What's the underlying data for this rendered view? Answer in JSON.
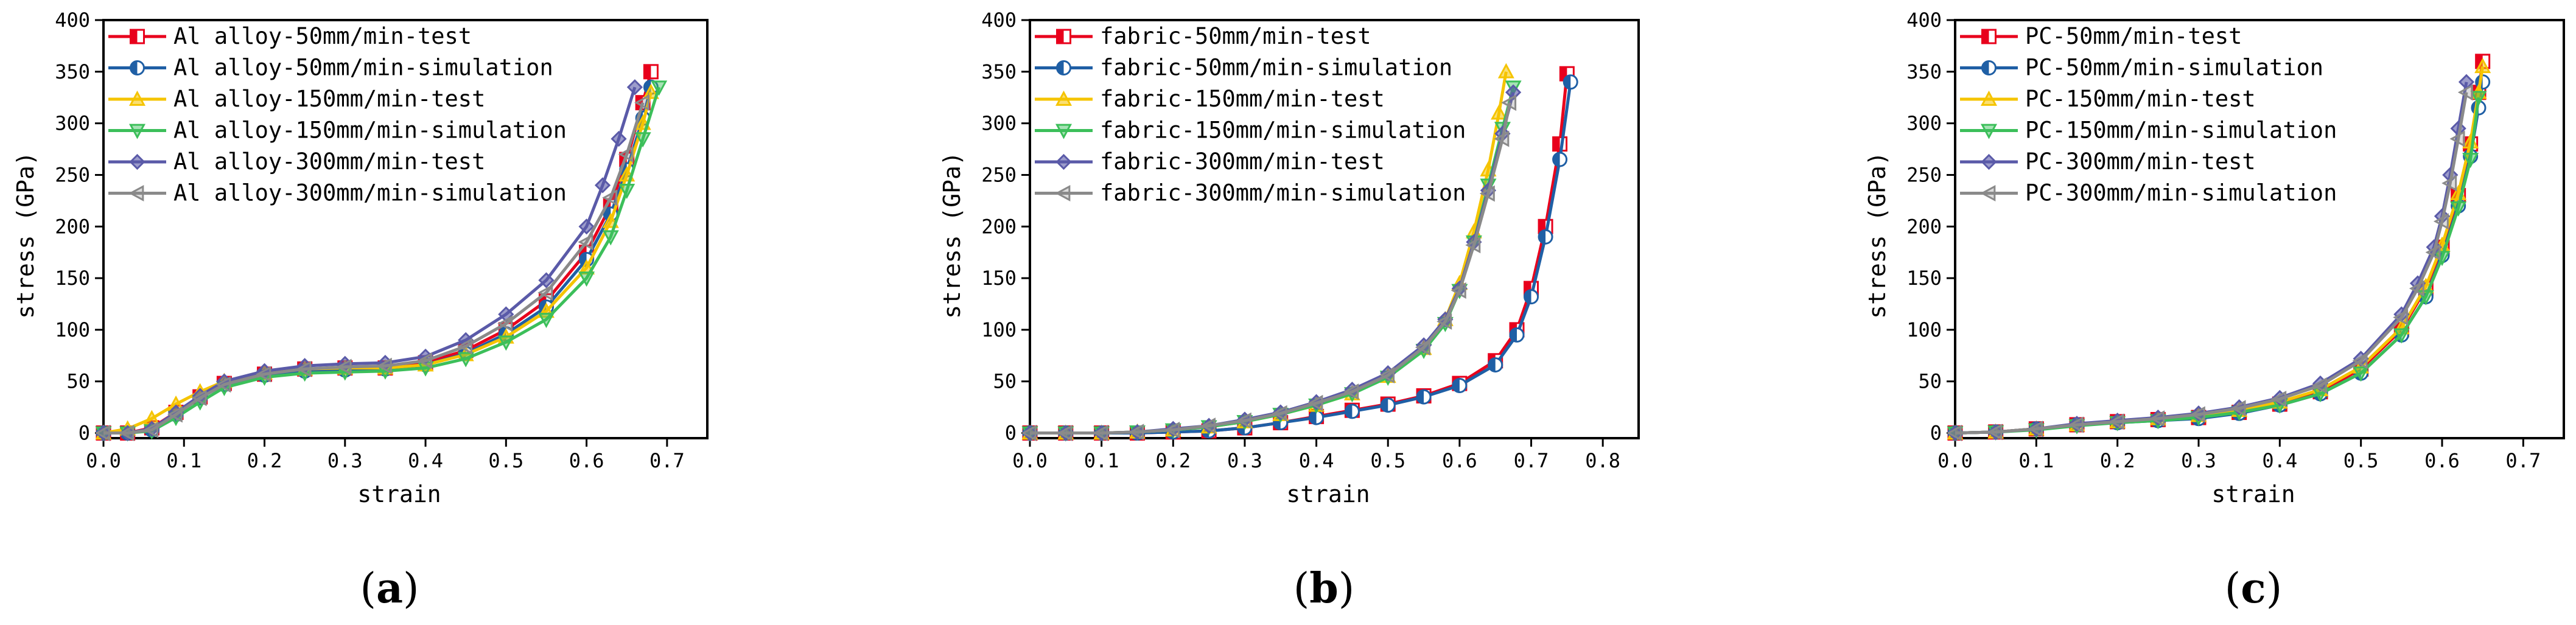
{
  "chart_data": [
    {
      "type": "line",
      "panel_label": "(a)",
      "panel_letter": "a",
      "xlabel": "strain",
      "ylabel": "stress (GPa)",
      "xlim": [
        0,
        0.75
      ],
      "ylim": [
        -5,
        400
      ],
      "x_ticks": [
        "0.0",
        "0.1",
        "0.2",
        "0.3",
        "0.4",
        "0.5",
        "0.6",
        "0.7"
      ],
      "x_tick_values": [
        0,
        0.1,
        0.2,
        0.3,
        0.4,
        0.5,
        0.6,
        0.7
      ],
      "y_ticks": [
        "0",
        "50",
        "100",
        "150",
        "200",
        "250",
        "300",
        "350",
        "400"
      ],
      "y_tick_values": [
        0,
        50,
        100,
        150,
        200,
        250,
        300,
        350,
        400
      ],
      "legend_position": "top-left",
      "series": [
        {
          "name": "Al alloy-50mm/min-test",
          "color": "#e8001c",
          "marker": "square",
          "x": [
            0,
            0.03,
            0.06,
            0.09,
            0.12,
            0.15,
            0.2,
            0.25,
            0.3,
            0.35,
            0.4,
            0.45,
            0.5,
            0.55,
            0.6,
            0.63,
            0.65,
            0.67,
            0.68
          ],
          "y": [
            0,
            0,
            5,
            20,
            35,
            48,
            57,
            62,
            63,
            63,
            68,
            80,
            100,
            128,
            175,
            220,
            265,
            320,
            350
          ]
        },
        {
          "name": "Al alloy-50mm/min-simulation",
          "color": "#1f5fa5",
          "marker": "half-circle",
          "x": [
            0,
            0.03,
            0.06,
            0.09,
            0.12,
            0.15,
            0.2,
            0.25,
            0.3,
            0.35,
            0.4,
            0.45,
            0.5,
            0.55,
            0.6,
            0.63,
            0.65,
            0.67,
            0.68
          ],
          "y": [
            0,
            0,
            3,
            18,
            34,
            47,
            56,
            60,
            61,
            62,
            66,
            77,
            96,
            122,
            168,
            212,
            255,
            305,
            335
          ]
        },
        {
          "name": "Al alloy-150mm/min-test",
          "color": "#f5c400",
          "marker": "triangle",
          "x": [
            0,
            0.03,
            0.06,
            0.09,
            0.12,
            0.15,
            0.2,
            0.25,
            0.3,
            0.35,
            0.4,
            0.45,
            0.5,
            0.55,
            0.6,
            0.63,
            0.65,
            0.67,
            0.68
          ],
          "y": [
            0,
            4,
            14,
            28,
            40,
            50,
            58,
            62,
            63,
            63,
            66,
            76,
            93,
            118,
            160,
            205,
            250,
            300,
            330
          ]
        },
        {
          "name": "Al alloy-150mm/min-simulation",
          "color": "#3cbf5a",
          "marker": "triangle-down",
          "x": [
            0,
            0.03,
            0.06,
            0.09,
            0.12,
            0.15,
            0.2,
            0.25,
            0.3,
            0.35,
            0.4,
            0.45,
            0.5,
            0.55,
            0.6,
            0.63,
            0.65,
            0.67,
            0.69
          ],
          "y": [
            0,
            0,
            2,
            15,
            30,
            44,
            54,
            58,
            59,
            60,
            63,
            72,
            88,
            110,
            150,
            190,
            235,
            285,
            335
          ]
        },
        {
          "name": "Al alloy-300mm/min-test",
          "color": "#5a5aa8",
          "marker": "diamond",
          "x": [
            0,
            0.03,
            0.06,
            0.09,
            0.12,
            0.15,
            0.2,
            0.25,
            0.3,
            0.35,
            0.4,
            0.45,
            0.5,
            0.55,
            0.6,
            0.62,
            0.64,
            0.66
          ],
          "y": [
            0,
            0,
            4,
            20,
            36,
            50,
            60,
            65,
            67,
            68,
            74,
            90,
            115,
            148,
            200,
            240,
            285,
            335
          ]
        },
        {
          "name": "Al alloy-300mm/min-simulation",
          "color": "#8a8a8a",
          "marker": "triangle-left",
          "x": [
            0,
            0.03,
            0.06,
            0.09,
            0.12,
            0.15,
            0.2,
            0.25,
            0.3,
            0.35,
            0.4,
            0.45,
            0.5,
            0.55,
            0.6,
            0.63,
            0.65,
            0.67
          ],
          "y": [
            0,
            0,
            3,
            18,
            34,
            47,
            57,
            62,
            64,
            65,
            70,
            84,
            106,
            136,
            185,
            228,
            270,
            320
          ]
        }
      ]
    },
    {
      "type": "line",
      "panel_label": "(b)",
      "panel_letter": "b",
      "xlabel": "strain",
      "ylabel": "stress (GPa)",
      "xlim": [
        0,
        0.85
      ],
      "ylim": [
        -5,
        400
      ],
      "x_ticks": [
        "0.0",
        "0.1",
        "0.2",
        "0.3",
        "0.4",
        "0.5",
        "0.6",
        "0.7",
        "0.8"
      ],
      "x_tick_values": [
        0,
        0.1,
        0.2,
        0.3,
        0.4,
        0.5,
        0.6,
        0.7,
        0.8
      ],
      "y_ticks": [
        "0",
        "50",
        "100",
        "150",
        "200",
        "250",
        "300",
        "350",
        "400"
      ],
      "y_tick_values": [
        0,
        50,
        100,
        150,
        200,
        250,
        300,
        350,
        400
      ],
      "legend_position": "top-left",
      "series": [
        {
          "name": "fabric-50mm/min-test",
          "color": "#e8001c",
          "marker": "square",
          "x": [
            0,
            0.05,
            0.1,
            0.15,
            0.2,
            0.25,
            0.3,
            0.35,
            0.4,
            0.45,
            0.5,
            0.55,
            0.6,
            0.65,
            0.68,
            0.7,
            0.72,
            0.74,
            0.75
          ],
          "y": [
            0,
            0,
            0,
            0,
            1,
            2,
            5,
            10,
            16,
            22,
            28,
            36,
            48,
            70,
            100,
            140,
            200,
            280,
            348
          ]
        },
        {
          "name": "fabric-50mm/min-simulation",
          "color": "#1f5fa5",
          "marker": "half-circle",
          "x": [
            0,
            0.05,
            0.1,
            0.15,
            0.2,
            0.25,
            0.3,
            0.35,
            0.4,
            0.45,
            0.5,
            0.55,
            0.6,
            0.65,
            0.68,
            0.7,
            0.72,
            0.74,
            0.755
          ],
          "y": [
            0,
            0,
            0,
            0,
            1,
            2,
            5,
            10,
            15,
            21,
            27,
            35,
            46,
            66,
            95,
            132,
            190,
            265,
            340
          ]
        },
        {
          "name": "fabric-150mm/min-test",
          "color": "#f5c400",
          "marker": "triangle",
          "x": [
            0,
            0.05,
            0.1,
            0.15,
            0.2,
            0.25,
            0.3,
            0.35,
            0.4,
            0.45,
            0.5,
            0.55,
            0.58,
            0.6,
            0.62,
            0.64,
            0.655,
            0.665
          ],
          "y": [
            0,
            0,
            0,
            1,
            3,
            6,
            11,
            18,
            27,
            38,
            55,
            82,
            110,
            145,
            195,
            255,
            310,
            350
          ]
        },
        {
          "name": "fabric-150mm/min-simulation",
          "color": "#3cbf5a",
          "marker": "triangle-down",
          "x": [
            0,
            0.05,
            0.1,
            0.15,
            0.2,
            0.25,
            0.3,
            0.35,
            0.4,
            0.45,
            0.5,
            0.55,
            0.58,
            0.6,
            0.62,
            0.64,
            0.66,
            0.675
          ],
          "y": [
            0,
            0,
            0,
            1,
            3,
            6,
            11,
            18,
            27,
            38,
            54,
            80,
            106,
            138,
            185,
            240,
            295,
            335
          ]
        },
        {
          "name": "fabric-300mm/min-test",
          "color": "#5a5aa8",
          "marker": "diamond",
          "x": [
            0,
            0.05,
            0.1,
            0.15,
            0.2,
            0.25,
            0.3,
            0.35,
            0.4,
            0.45,
            0.5,
            0.55,
            0.58,
            0.6,
            0.62,
            0.64,
            0.66,
            0.675
          ],
          "y": [
            0,
            0,
            0,
            1,
            4,
            7,
            13,
            20,
            30,
            42,
            58,
            85,
            110,
            140,
            185,
            235,
            290,
            330
          ]
        },
        {
          "name": "fabric-300mm/min-simulation",
          "color": "#8a8a8a",
          "marker": "triangle-left",
          "x": [
            0,
            0.05,
            0.1,
            0.15,
            0.2,
            0.25,
            0.3,
            0.35,
            0.4,
            0.45,
            0.5,
            0.55,
            0.58,
            0.6,
            0.62,
            0.64,
            0.66,
            0.67
          ],
          "y": [
            0,
            0,
            0,
            1,
            3,
            7,
            12,
            19,
            29,
            40,
            56,
            83,
            108,
            138,
            182,
            232,
            285,
            320
          ]
        }
      ]
    },
    {
      "type": "line",
      "panel_label": "(c)",
      "panel_letter": "c",
      "xlabel": "strain",
      "ylabel": "stress (GPa)",
      "xlim": [
        0,
        0.75
      ],
      "ylim": [
        -5,
        400
      ],
      "x_ticks": [
        "0.0",
        "0.1",
        "0.2",
        "0.3",
        "0.4",
        "0.5",
        "0.6",
        "0.7"
      ],
      "x_tick_values": [
        0,
        0.1,
        0.2,
        0.3,
        0.4,
        0.5,
        0.6,
        0.7
      ],
      "y_ticks": [
        "0",
        "50",
        "100",
        "150",
        "200",
        "250",
        "300",
        "350",
        "400"
      ],
      "y_tick_values": [
        0,
        50,
        100,
        150,
        200,
        250,
        300,
        350,
        400
      ],
      "legend_position": "top-left",
      "series": [
        {
          "name": "PC-50mm/min-test",
          "color": "#e8001c",
          "marker": "square",
          "x": [
            0,
            0.05,
            0.1,
            0.15,
            0.2,
            0.25,
            0.3,
            0.35,
            0.4,
            0.45,
            0.5,
            0.55,
            0.58,
            0.6,
            0.62,
            0.635,
            0.645,
            0.65
          ],
          "y": [
            0,
            1,
            4,
            8,
            11,
            13,
            15,
            20,
            28,
            40,
            62,
            100,
            140,
            180,
            230,
            280,
            330,
            360
          ]
        },
        {
          "name": "PC-50mm/min-simulation",
          "color": "#1f5fa5",
          "marker": "half-circle",
          "x": [
            0,
            0.05,
            0.1,
            0.15,
            0.2,
            0.25,
            0.3,
            0.35,
            0.4,
            0.45,
            0.5,
            0.55,
            0.58,
            0.6,
            0.62,
            0.635,
            0.645,
            0.65
          ],
          "y": [
            0,
            1,
            4,
            8,
            10,
            12,
            14,
            19,
            27,
            38,
            58,
            95,
            132,
            172,
            220,
            268,
            315,
            340
          ]
        },
        {
          "name": "PC-150mm/min-test",
          "color": "#f5c400",
          "marker": "triangle",
          "x": [
            0,
            0.05,
            0.1,
            0.15,
            0.2,
            0.25,
            0.3,
            0.35,
            0.4,
            0.45,
            0.5,
            0.55,
            0.58,
            0.6,
            0.62,
            0.635,
            0.645,
            0.65
          ],
          "y": [
            0,
            1,
            4,
            8,
            11,
            14,
            17,
            22,
            30,
            42,
            64,
            102,
            142,
            182,
            232,
            282,
            330,
            355
          ]
        },
        {
          "name": "PC-150mm/min-simulation",
          "color": "#3cbf5a",
          "marker": "triangle-down",
          "x": [
            0,
            0.05,
            0.1,
            0.15,
            0.2,
            0.25,
            0.3,
            0.35,
            0.4,
            0.45,
            0.5,
            0.55,
            0.58,
            0.6,
            0.62,
            0.635,
            0.645
          ],
          "y": [
            0,
            1,
            3,
            7,
            10,
            12,
            15,
            20,
            27,
            38,
            58,
            95,
            132,
            170,
            218,
            265,
            325
          ]
        },
        {
          "name": "PC-300mm/min-test",
          "color": "#5a5aa8",
          "marker": "diamond",
          "x": [
            0,
            0.05,
            0.1,
            0.15,
            0.2,
            0.25,
            0.3,
            0.35,
            0.4,
            0.45,
            0.5,
            0.55,
            0.57,
            0.59,
            0.6,
            0.61,
            0.62,
            0.63
          ],
          "y": [
            0,
            1,
            4,
            9,
            12,
            15,
            19,
            25,
            34,
            48,
            72,
            115,
            145,
            180,
            210,
            250,
            295,
            340
          ]
        },
        {
          "name": "PC-300mm/min-simulation",
          "color": "#8a8a8a",
          "marker": "triangle-left",
          "x": [
            0,
            0.05,
            0.1,
            0.15,
            0.2,
            0.25,
            0.3,
            0.35,
            0.4,
            0.45,
            0.5,
            0.55,
            0.57,
            0.59,
            0.6,
            0.61,
            0.62,
            0.63
          ],
          "y": [
            0,
            1,
            4,
            8,
            11,
            14,
            18,
            24,
            33,
            46,
            70,
            112,
            140,
            175,
            205,
            242,
            285,
            330
          ]
        }
      ]
    }
  ]
}
